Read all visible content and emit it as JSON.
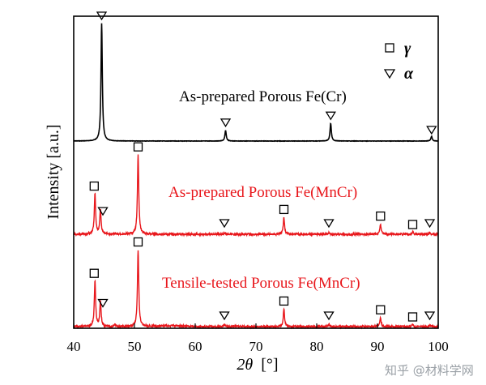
{
  "chart_data": {
    "type": "line",
    "title": "",
    "xlabel": "2θ [°]",
    "xlabel_parts": {
      "italic": "2θ",
      "unit": "[°]"
    },
    "ylabel": "Intensity [a.u.]",
    "xlim": [
      40,
      100
    ],
    "xticks": [
      40,
      50,
      60,
      70,
      80,
      90,
      100
    ],
    "grid": false,
    "legend": {
      "placement": "top-right",
      "entries": [
        {
          "symbol": "square",
          "label": "γ"
        },
        {
          "symbol": "triangle-down",
          "label": "α"
        }
      ]
    },
    "series": [
      {
        "name": "As-prepared Porous Fe(Cr)",
        "color": "#000000",
        "peaks": [
          {
            "x": 44.6,
            "height": 1.0,
            "phase": "α"
          },
          {
            "x": 65.0,
            "height": 0.09,
            "phase": "α"
          },
          {
            "x": 82.3,
            "height": 0.15,
            "phase": "α"
          },
          {
            "x": 98.9,
            "height": 0.04,
            "phase": "α"
          }
        ]
      },
      {
        "name": "As-prepared Porous Fe(MnCr)",
        "color": "#e8161b",
        "peaks": [
          {
            "x": 43.5,
            "height": 0.48,
            "phase": "γ"
          },
          {
            "x": 44.4,
            "height": 0.3,
            "phase": "α"
          },
          {
            "x": 50.6,
            "height": 0.95,
            "phase": "γ"
          },
          {
            "x": 64.8,
            "height": 0.02,
            "phase": "α"
          },
          {
            "x": 74.6,
            "height": 0.2,
            "phase": "γ"
          },
          {
            "x": 82.0,
            "height": 0.02,
            "phase": "α"
          },
          {
            "x": 90.5,
            "height": 0.12,
            "phase": "γ"
          },
          {
            "x": 95.8,
            "height": 0.03,
            "phase": "γ"
          },
          {
            "x": 98.6,
            "height": 0.02,
            "phase": "α"
          }
        ]
      },
      {
        "name": "Tensile-tested Porous Fe(MnCr)",
        "color": "#e8161b",
        "peaks": [
          {
            "x": 43.5,
            "height": 0.62,
            "phase": "γ"
          },
          {
            "x": 44.4,
            "height": 0.35,
            "phase": "α"
          },
          {
            "x": 46.8,
            "height": 0.03,
            "phase": ""
          },
          {
            "x": 50.6,
            "height": 1.05,
            "phase": "γ"
          },
          {
            "x": 64.8,
            "height": 0.03,
            "phase": "α"
          },
          {
            "x": 74.6,
            "height": 0.24,
            "phase": "γ"
          },
          {
            "x": 82.0,
            "height": 0.03,
            "phase": "α"
          },
          {
            "x": 90.5,
            "height": 0.12,
            "phase": "γ"
          },
          {
            "x": 95.8,
            "height": 0.03,
            "phase": "γ"
          },
          {
            "x": 98.6,
            "height": 0.02,
            "phase": "α"
          }
        ]
      }
    ]
  },
  "watermark": "知乎 @材料学网"
}
